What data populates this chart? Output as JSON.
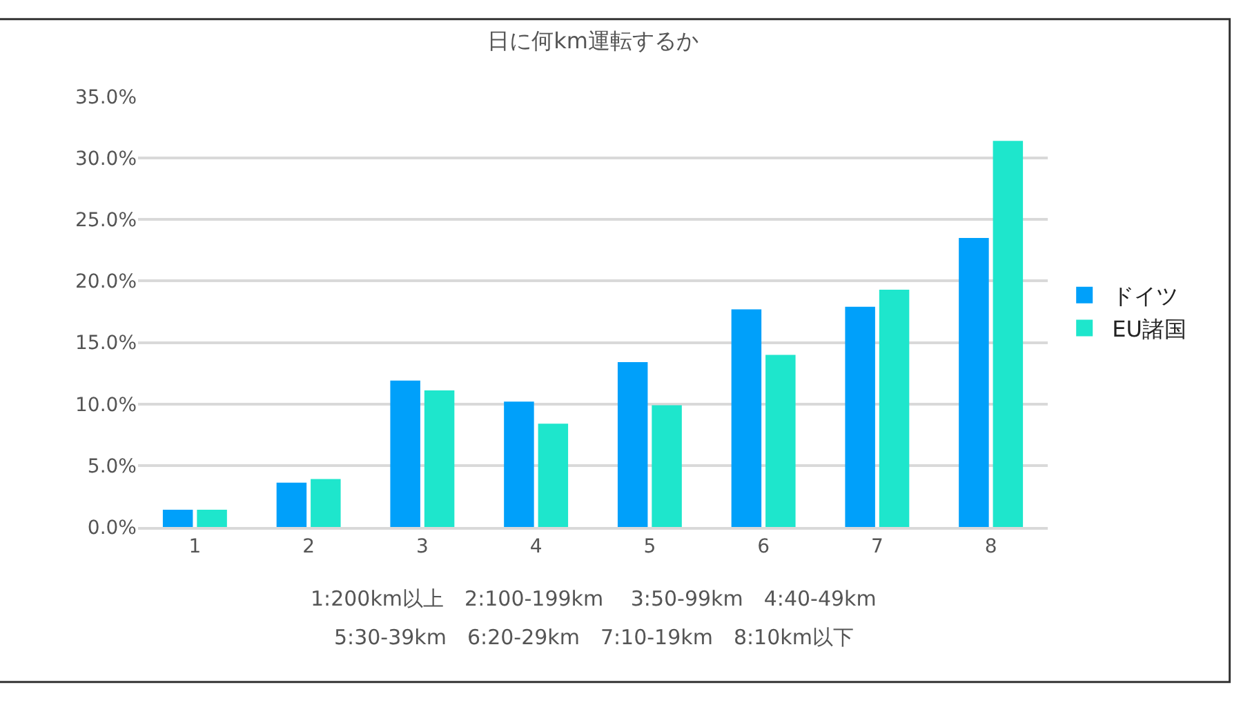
{
  "chart_data": {
    "type": "bar",
    "title": "日に何km運転するか",
    "categories": [
      "1",
      "2",
      "3",
      "4",
      "5",
      "6",
      "7",
      "8"
    ],
    "series": [
      {
        "name": "ドイツ",
        "color": "#00a0fa",
        "values": [
          1.4,
          3.6,
          11.9,
          10.2,
          13.4,
          17.7,
          17.9,
          23.5
        ]
      },
      {
        "name": "EU諸国",
        "color": "#1ee6cc",
        "values": [
          1.4,
          3.9,
          11.1,
          8.4,
          9.9,
          14.0,
          19.3,
          31.4
        ]
      }
    ],
    "ylim": [
      0,
      35
    ],
    "yticks": [
      {
        "value": 0,
        "label": "0.0%"
      },
      {
        "value": 5,
        "label": "5.0%"
      },
      {
        "value": 10,
        "label": "10.0%"
      },
      {
        "value": 15,
        "label": "15.0%"
      },
      {
        "value": 20,
        "label": "20.0%"
      },
      {
        "value": 25,
        "label": "25.0%"
      },
      {
        "value": 30,
        "label": "30.0%"
      },
      {
        "value": 35,
        "label": "35.0%"
      }
    ],
    "grid": "y",
    "legend": "right",
    "annotations": [
      "1:200km以上　2:100-199km　 3:50-99km　4:40-49km",
      "5:30-39km　6:20-29km　7:10-19km　8:10km以下"
    ]
  }
}
